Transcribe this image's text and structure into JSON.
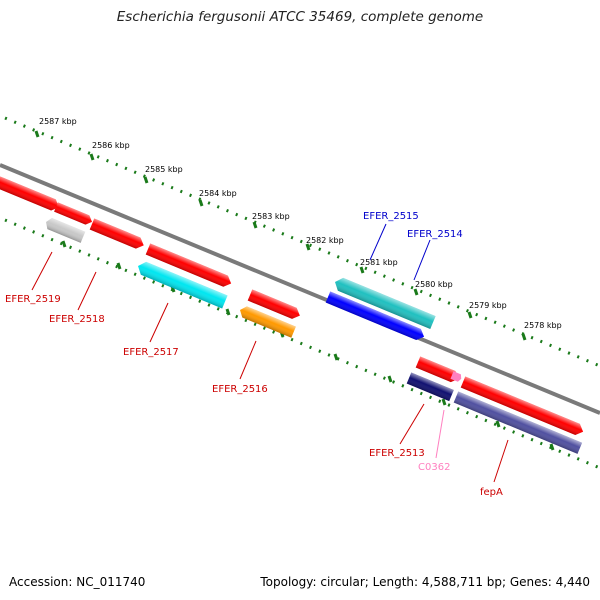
{
  "title": "Escherichia fergusonii ATCC 35469, complete genome",
  "footer": {
    "accession": "Accession: NC_011740",
    "summary": "Topology: circular; Length: 4,588,711 bp; Genes: 4,440"
  },
  "scale": {
    "ticks": [
      "2587 kbp",
      "2586 kbp",
      "2585 kbp",
      "2584 kbp",
      "2583 kbp",
      "2582 kbp",
      "2581 kbp",
      "2580 kbp",
      "2579 kbp",
      "2578 kbp"
    ]
  },
  "colors": {
    "backbone": "#808080",
    "tick": "#1a7a1a",
    "red": "#ff0000",
    "gray": "#c8c8c8",
    "cyan": "#00e6f0",
    "orange": "#ff9900",
    "teal": "#20c0c0",
    "blue": "#0000ff",
    "navy": "#101070",
    "slate": "#5050a0",
    "pink": "#ff80c0",
    "label_red": "#cc0000",
    "label_blue": "#0000cc",
    "label_pink": "#ff80c0"
  },
  "gene_labels": [
    {
      "name": "EFER_2519",
      "color": "label_red"
    },
    {
      "name": "EFER_2518",
      "color": "label_red"
    },
    {
      "name": "EFER_2517",
      "color": "label_red"
    },
    {
      "name": "EFER_2516",
      "color": "label_red"
    },
    {
      "name": "EFER_2515",
      "color": "label_blue"
    },
    {
      "name": "EFER_2514",
      "color": "label_blue"
    },
    {
      "name": "EFER_2513",
      "color": "label_red"
    },
    {
      "name": "C0362",
      "color": "label_pink"
    },
    {
      "name": "fepA",
      "color": "label_red"
    }
  ]
}
